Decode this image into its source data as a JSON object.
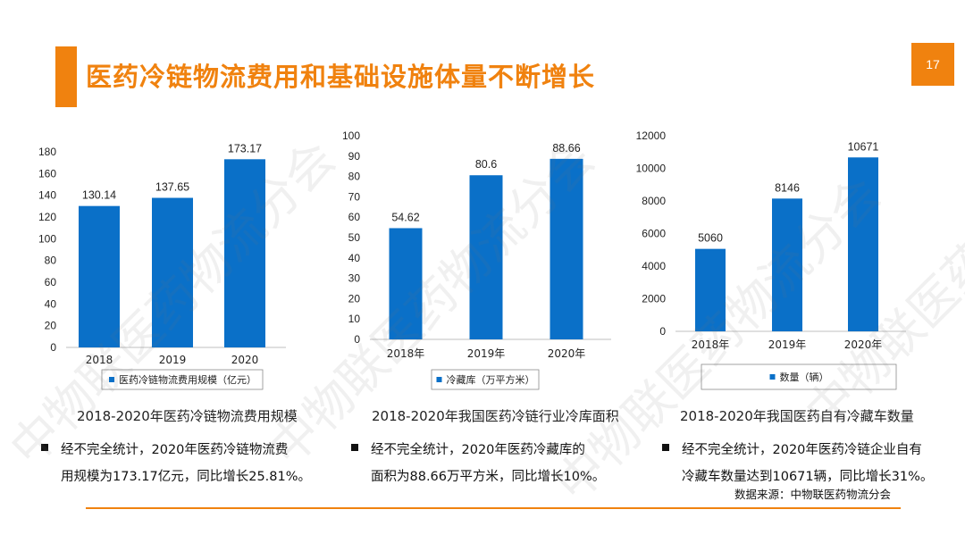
{
  "slide": {
    "title": "医药冷链物流费用和基础设施体量不断增长",
    "page_number": "17",
    "source": "数据来源：中物联医药物流分会",
    "watermark": "中物联医药物流分会",
    "accent_color": "#f0820f",
    "bar_color": "#0a70c8"
  },
  "chart_data": [
    {
      "type": "bar",
      "categories": [
        "2018",
        "2019",
        "2020"
      ],
      "values": [
        130.14,
        137.65,
        173.17
      ],
      "value_labels": [
        "130.14",
        "137.65",
        "173.17"
      ],
      "ylim": [
        0,
        180
      ],
      "yticks": [
        0,
        20,
        40,
        60,
        80,
        100,
        120,
        140,
        160,
        180
      ],
      "legend": "医药冷链物流费用规模（亿元）",
      "legend_position": "bottom",
      "caption": "2018-2020年医药冷链物流费用规模"
    },
    {
      "type": "bar",
      "categories": [
        "2018年",
        "2019年",
        "2020年"
      ],
      "values": [
        54.62,
        80.6,
        88.66
      ],
      "value_labels": [
        "54.62",
        "80.6",
        "88.66"
      ],
      "ylim": [
        0,
        100
      ],
      "yticks": [
        0,
        10,
        20,
        30,
        40,
        50,
        60,
        70,
        80,
        90,
        100
      ],
      "legend": "冷藏库（万平方米）",
      "legend_position": "bottom",
      "caption": "2018-2020年我国医药冷链行业冷库面积"
    },
    {
      "type": "bar",
      "categories": [
        "2018年",
        "2019年",
        "2020年"
      ],
      "values": [
        5060,
        8146,
        10671
      ],
      "value_labels": [
        "5060",
        "8146",
        "10671"
      ],
      "ylim": [
        0,
        12000
      ],
      "yticks": [
        0,
        2000,
        4000,
        6000,
        8000,
        10000,
        12000
      ],
      "legend": "数量（辆）",
      "legend_position": "bottom",
      "caption": "2018-2020年我国医药自有冷藏车数量"
    }
  ],
  "bullets": [
    {
      "line1": "经不完全统计，2020年医药冷链物流费",
      "line2": "用规模为173.17亿元，同比增长25.81%。"
    },
    {
      "line1": "经不完全统计，2020年医药冷藏库的",
      "line2": "面积为88.66万平方米，同比增长10%。"
    },
    {
      "line1": "经不完全统计，2020年医药冷链企业自有",
      "line2": "冷藏车数量达到10671辆，同比增长31%。"
    }
  ]
}
